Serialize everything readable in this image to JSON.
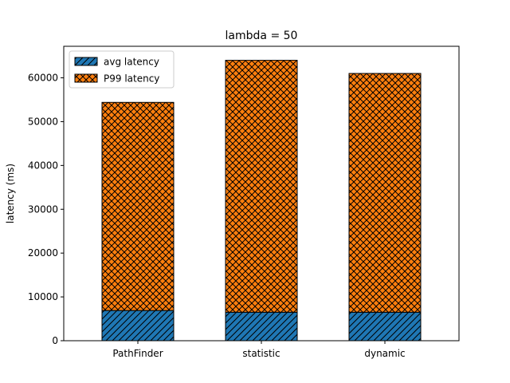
{
  "chart_data": {
    "type": "bar",
    "stacked": true,
    "title": "lambda = 50",
    "xlabel": "",
    "ylabel": "latency (ms)",
    "categories": [
      "PathFinder",
      "statistic",
      "dynamic"
    ],
    "series": [
      {
        "name": "avg latency",
        "values": [
          6900,
          6500,
          6500
        ],
        "color": "#1f77b4",
        "hatch": "diagonal"
      },
      {
        "name": "P99 latency",
        "values": [
          47500,
          57500,
          54500
        ],
        "color": "#ff7f0e",
        "hatch": "crosshatch"
      }
    ],
    "ylim": [
      0,
      67200
    ],
    "yticks": [
      0,
      10000,
      20000,
      30000,
      40000,
      50000,
      60000
    ],
    "legend": "top-left",
    "grid": false
  }
}
